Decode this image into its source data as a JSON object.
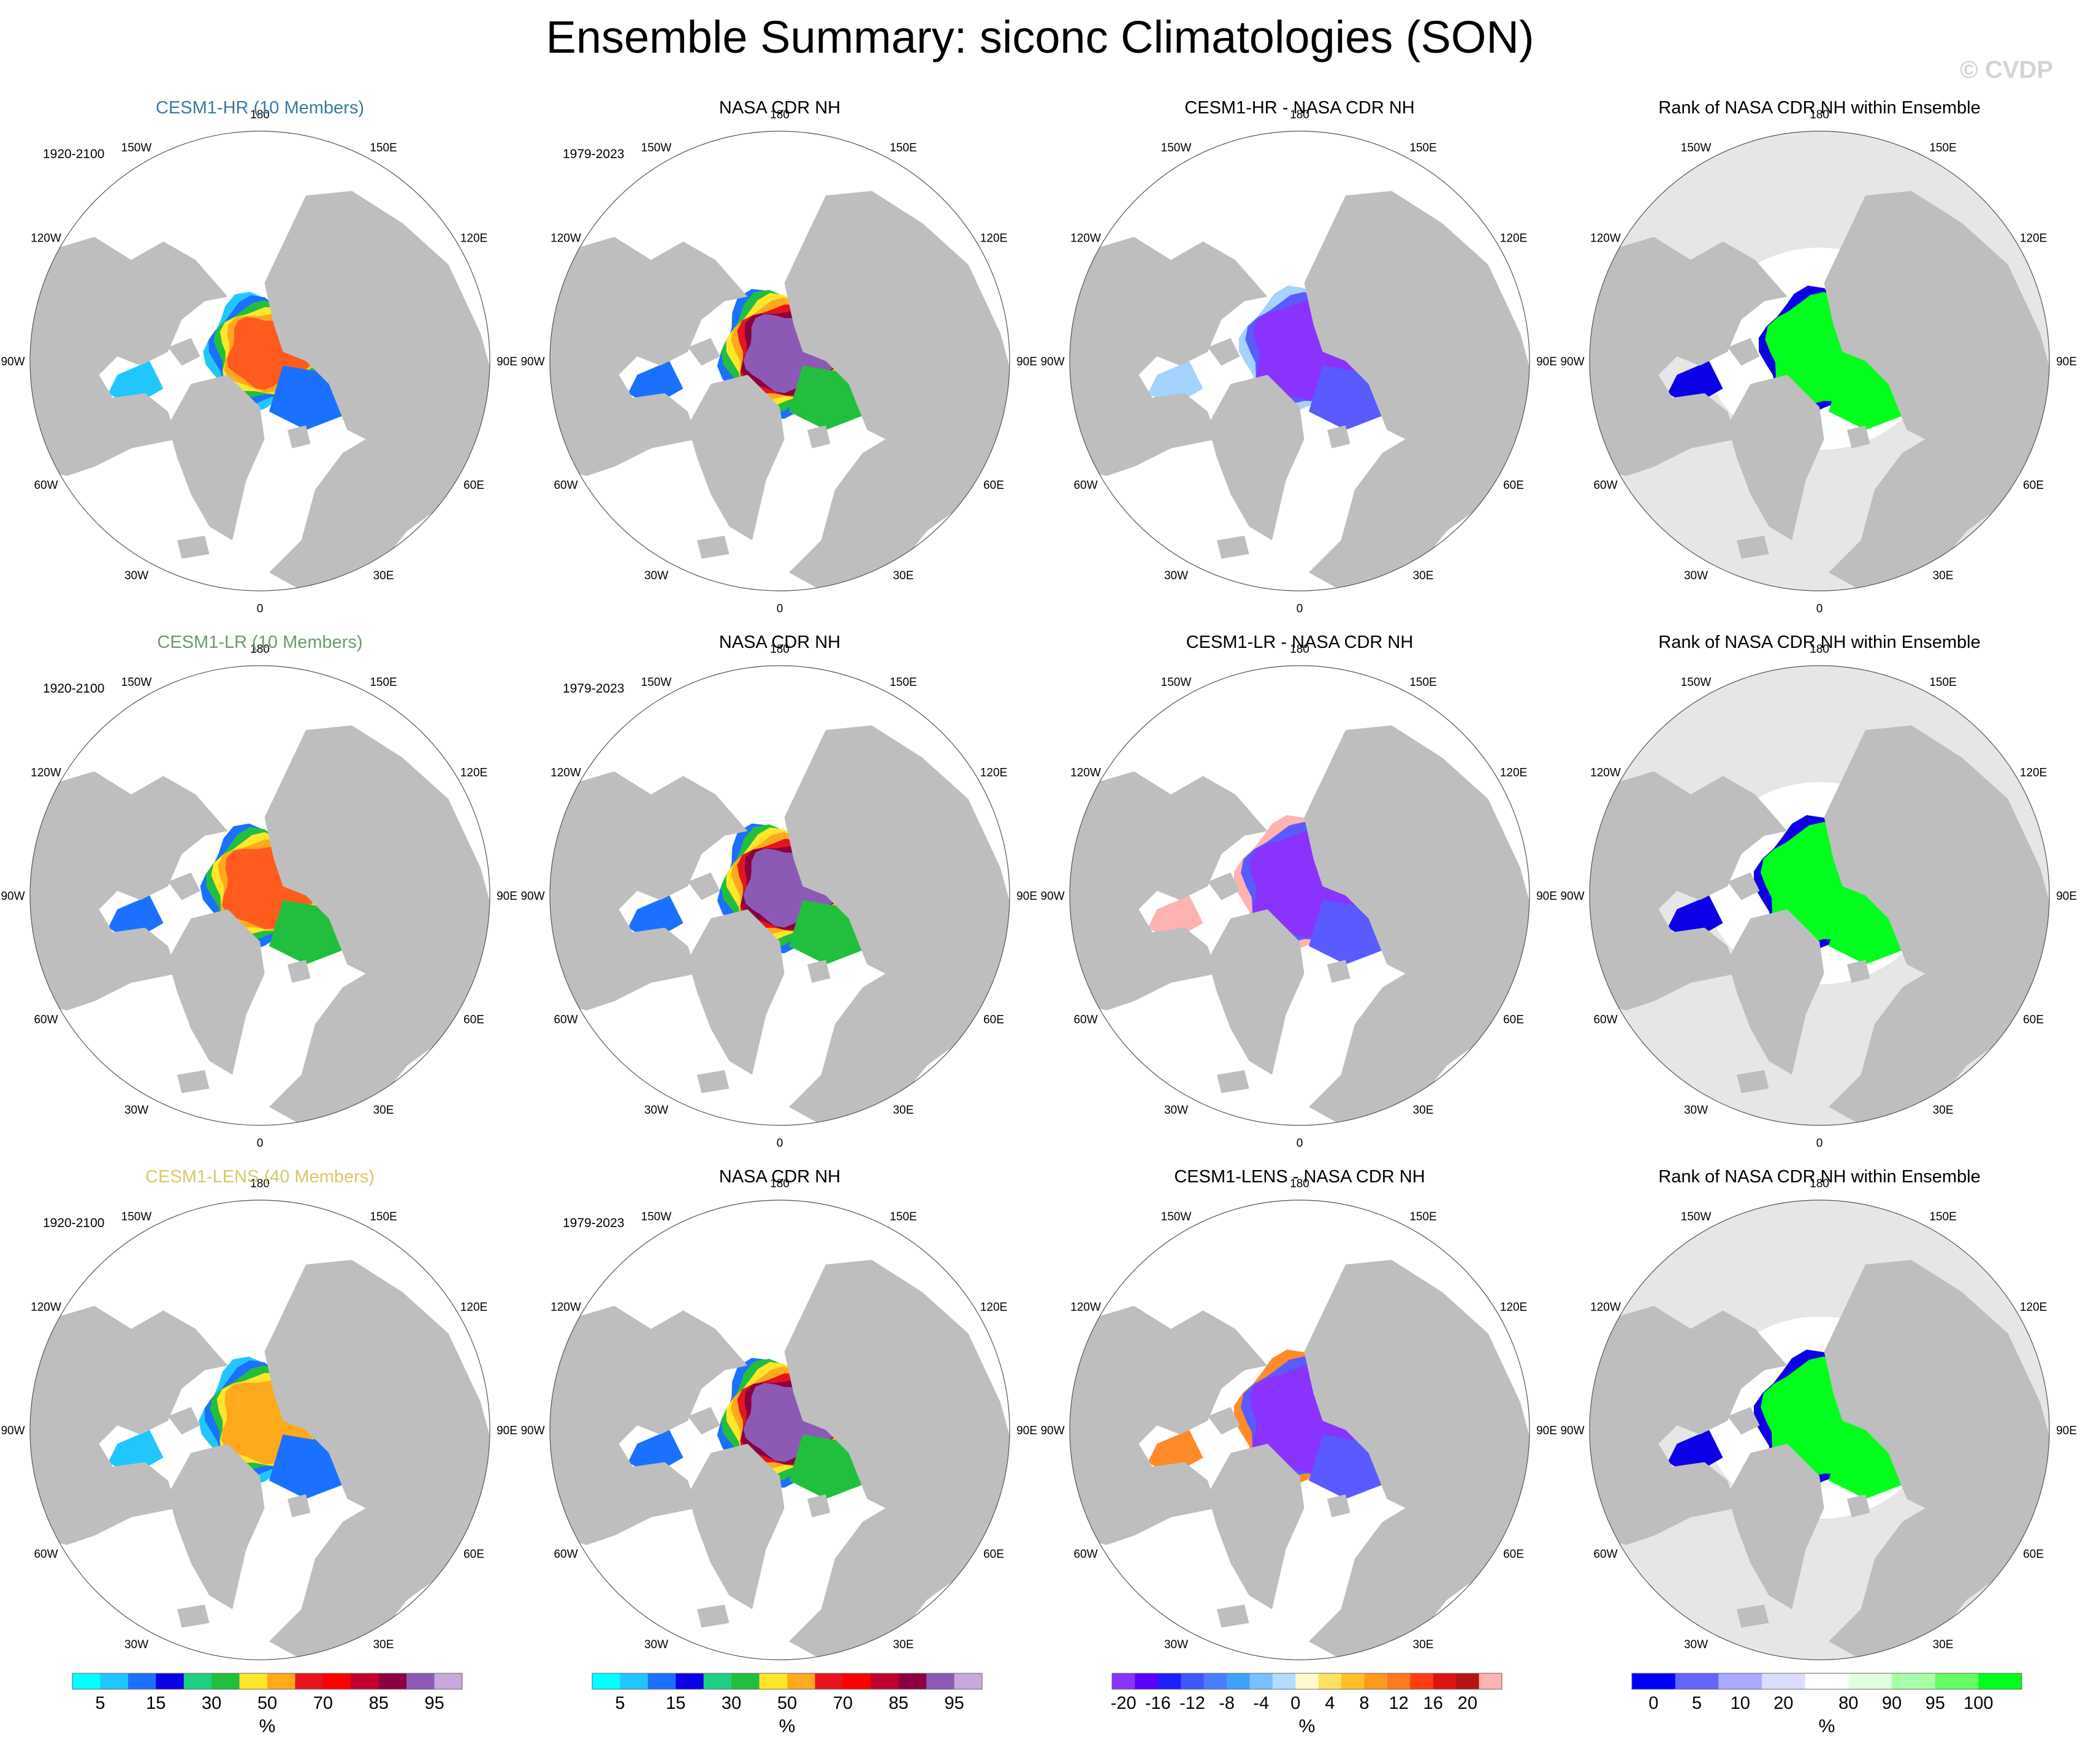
{
  "title": "Ensemble Summary: siconc Climatologies (SON)",
  "watermark": "© CVDP",
  "longitude_labels": [
    "180",
    "150W",
    "150E",
    "120W",
    "120E",
    "90W",
    "90E",
    "60W",
    "60E",
    "30W",
    "30E",
    "0"
  ],
  "colors": {
    "land": "#bebebe",
    "ocean": "#ffffff",
    "outside_ocean_rank": "#e6e6e6"
  },
  "rows": [
    {
      "panels": [
        {
          "title": "CESM1-HR (10 Members)",
          "title_color": "#3b7b9b",
          "years": "1920-2100",
          "kind": "model",
          "palette": "conc",
          "zones": [
            "#ff5b1f",
            "#ffa91d",
            "#ffe62a",
            "#22be3e",
            "#1b70ff",
            "#21c6ff"
          ],
          "ext": 0.86
        },
        {
          "title": "NASA CDR NH",
          "title_color": "#000000",
          "years": "1979-2023",
          "kind": "obs",
          "palette": "conc",
          "zones": [
            "#8c5ab4",
            "#8a0041",
            "#e6141e",
            "#ffa91d",
            "#ffe62a",
            "#22be3e",
            "#1b70ff"
          ],
          "ext": 0.95
        },
        {
          "title": "CESM1-HR - NASA CDR NH",
          "title_color": "#000000",
          "years": "",
          "kind": "diff",
          "palette": "diff",
          "zones": [
            "#8a33ff",
            "#8a33ff",
            "#8a33ff",
            "#5a5aff",
            "#a5d2ff"
          ],
          "ext": 0.93
        },
        {
          "title": "Rank of NASA CDR NH within Ensemble",
          "title_color": "#000000",
          "years": "",
          "kind": "rank",
          "palette": "rank",
          "zones": [
            "#00ff1c",
            "#00ff1c",
            "#00ff1c",
            "#00ff1c",
            "#0b00e6"
          ],
          "ext": 0.93
        }
      ]
    },
    {
      "panels": [
        {
          "title": "CESM1-LR (10 Members)",
          "title_color": "#6b9b6b",
          "years": "1920-2100",
          "kind": "model",
          "palette": "conc",
          "zones": [
            "#ff5b1f",
            "#ff5b1f",
            "#ffa91d",
            "#ffe62a",
            "#22be3e",
            "#1b70ff"
          ],
          "ext": 0.9
        },
        {
          "title": "NASA CDR NH",
          "title_color": "#000000",
          "years": "1979-2023",
          "kind": "obs",
          "palette": "conc",
          "zones": [
            "#8c5ab4",
            "#8a0041",
            "#e6141e",
            "#ffa91d",
            "#ffe62a",
            "#22be3e",
            "#1b70ff"
          ],
          "ext": 0.95
        },
        {
          "title": "CESM1-LR - NASA CDR NH",
          "title_color": "#000000",
          "years": "",
          "kind": "diff",
          "palette": "diff",
          "zones": [
            "#8a33ff",
            "#8a33ff",
            "#8a33ff",
            "#5a5aff",
            "#ffb2b2"
          ],
          "ext": 1.0
        },
        {
          "title": "Rank of NASA CDR NH within Ensemble",
          "title_color": "#000000",
          "years": "",
          "kind": "rank",
          "palette": "rank",
          "zones": [
            "#00ff1c",
            "#00ff1c",
            "#00ff1c",
            "#00ff1c",
            "#0b00e6"
          ],
          "ext": 1.0
        }
      ]
    },
    {
      "panels": [
        {
          "title": "CESM1-LENS (40 Members)",
          "title_color": "#d8c86a",
          "years": "1920-2100",
          "kind": "model",
          "palette": "conc",
          "zones": [
            "#ffa91d",
            "#ffa91d",
            "#ffe62a",
            "#22be3e",
            "#1b70ff",
            "#21c6ff"
          ],
          "ext": 0.92
        },
        {
          "title": "NASA CDR NH",
          "title_color": "#000000",
          "years": "1979-2023",
          "kind": "obs",
          "palette": "conc",
          "zones": [
            "#8c5ab4",
            "#8a0041",
            "#e6141e",
            "#ffa91d",
            "#ffe62a",
            "#22be3e",
            "#1b70ff"
          ],
          "ext": 0.95
        },
        {
          "title": "CESM1-LENS - NASA CDR NH",
          "title_color": "#000000",
          "years": "",
          "kind": "diff",
          "palette": "diff",
          "zones": [
            "#8a33ff",
            "#8a33ff",
            "#8a33ff",
            "#5a5aff",
            "#ff8a2a"
          ],
          "ext": 1.0
        },
        {
          "title": "Rank of NASA CDR NH within Ensemble",
          "title_color": "#000000",
          "years": "",
          "kind": "rank",
          "palette": "rank",
          "zones": [
            "#00ff1c",
            "#00ff1c",
            "#00ff1c",
            "#00ff1c",
            "#0b00e6"
          ],
          "ext": 1.0
        }
      ]
    }
  ],
  "legends": [
    {
      "unit": "%",
      "labels": [
        "5",
        "15",
        "30",
        "50",
        "70",
        "85",
        "95"
      ],
      "colors": [
        "#00ffff",
        "#21c6ff",
        "#1b70ff",
        "#0b00e6",
        "#1fcf84",
        "#22be3e",
        "#ffe62a",
        "#ffa91d",
        "#e6141e",
        "#ff0000",
        "#c0002f",
        "#8a0041",
        "#8c5ab4",
        "#c8a8dc"
      ]
    },
    {
      "unit": "%",
      "labels": [
        "5",
        "15",
        "30",
        "50",
        "70",
        "85",
        "95"
      ],
      "colors": [
        "#00ffff",
        "#21c6ff",
        "#1b70ff",
        "#0b00e6",
        "#1fcf84",
        "#22be3e",
        "#ffe62a",
        "#ffa91d",
        "#e6141e",
        "#ff0000",
        "#c0002f",
        "#8a0041",
        "#8c5ab4",
        "#c8a8dc"
      ]
    },
    {
      "unit": "%",
      "labels": [
        "-20",
        "-16",
        "-12",
        "-8",
        "-4",
        "0",
        "4",
        "8",
        "12",
        "16",
        "20"
      ],
      "colors": [
        "#8a33ff",
        "#5a00ff",
        "#1e1eff",
        "#3f55ff",
        "#4a7cff",
        "#3fa0ff",
        "#78c0ff",
        "#b4dcff",
        "#fffacc",
        "#ffe060",
        "#ffc028",
        "#ff9a1e",
        "#ff7a1e",
        "#ff3c14",
        "#dc1414",
        "#b41414",
        "#ffb2b2"
      ]
    },
    {
      "unit": "%",
      "labels": [
        "0",
        "5",
        "10",
        "20",
        "80",
        "90",
        "95",
        "100"
      ],
      "colors": [
        "#0000ff",
        "#6464ff",
        "#aaaaff",
        "#dcdcff",
        "#ffffff",
        "#e0ffe0",
        "#aaffaa",
        "#64ff64",
        "#00ff1c"
      ]
    }
  ]
}
